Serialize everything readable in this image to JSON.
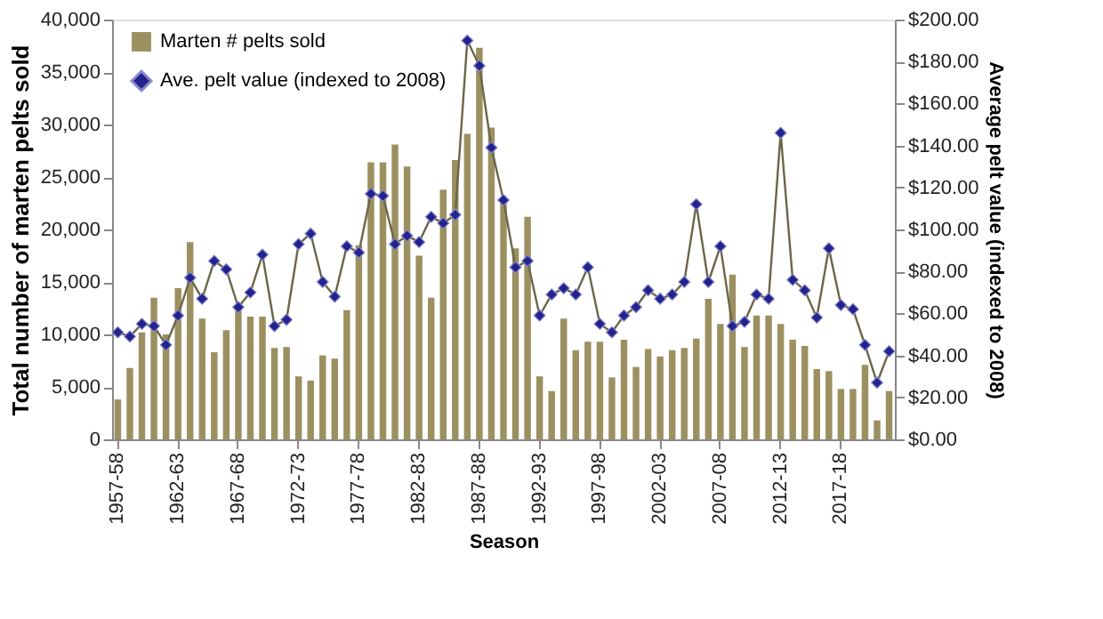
{
  "chart_data": {
    "type": "bar",
    "xlabel": "Season",
    "ylabel": "Total number of marten pelts sold",
    "y2label": "Average pelt value (indexed to 2008)",
    "categories": [
      "1957-58",
      null,
      null,
      null,
      null,
      "1962-63",
      null,
      null,
      null,
      null,
      "1967-68",
      null,
      null,
      null,
      null,
      "1972-73",
      null,
      null,
      null,
      null,
      "1977-78",
      null,
      null,
      null,
      null,
      "1982-83",
      null,
      null,
      null,
      null,
      "1987-88",
      null,
      null,
      null,
      null,
      "1992-93",
      null,
      null,
      null,
      null,
      "1997-98",
      null,
      null,
      null,
      null,
      "2002-03",
      null,
      null,
      null,
      null,
      "2007-08",
      null,
      null,
      null,
      null,
      "2012-13",
      null,
      null,
      null,
      null,
      "2017-18",
      null,
      null,
      null,
      null
    ],
    "series": [
      {
        "name": "Marten # pelts sold",
        "color": "#9c9060",
        "values": [
          3800,
          6800,
          10200,
          13500,
          10000,
          14400,
          18800,
          11500,
          8300,
          10400,
          12600,
          11700,
          11700,
          8700,
          8800,
          6000,
          5600,
          8000,
          7700,
          12300,
          18500,
          26400,
          26400,
          28100,
          26000,
          17500,
          13500,
          23800,
          26600,
          29100,
          37300,
          29700,
          22500,
          18200,
          21200,
          6000,
          4600,
          11500,
          8500,
          9300,
          9300,
          5900,
          9500,
          6900,
          8600,
          7900,
          8500,
          8700,
          9600,
          13400,
          11000,
          15700,
          8800,
          11800,
          11800,
          11000,
          9500,
          8900,
          6700,
          6500,
          4800,
          4800,
          7100,
          1800,
          4600
        ]
      },
      {
        "name": "Ave. pelt value (indexed to 2008)",
        "type": "line",
        "axis": "y2",
        "marker": "diamond",
        "color": "#23238e",
        "values": [
          51,
          49,
          55,
          54,
          45,
          59,
          77,
          67,
          85,
          81,
          63,
          70,
          88,
          54,
          57,
          93,
          98,
          75,
          68,
          92,
          89,
          117,
          116,
          93,
          97,
          94,
          106,
          103,
          107,
          190,
          178,
          139,
          114,
          82,
          85,
          59,
          69,
          72,
          69,
          82,
          55,
          51,
          59,
          63,
          71,
          67,
          69,
          75,
          112,
          75,
          92,
          54,
          56,
          69,
          67,
          146,
          76,
          71,
          58,
          91,
          64,
          62,
          45,
          27,
          42
        ]
      }
    ],
    "ylim": [
      0,
      40000
    ],
    "yticks": [
      0,
      {
        "value": 5000,
        "label": "5,000"
      },
      {
        "value": 10000,
        "label": "10,000"
      },
      {
        "value": 15000,
        "label": "15,000"
      },
      {
        "value": 20000,
        "label": "20,000"
      },
      {
        "value": 25000,
        "label": "25,000"
      },
      {
        "value": 30000,
        "label": "30,000"
      },
      {
        "value": 35000,
        "label": "35,000"
      },
      {
        "value": 40000,
        "label": "40,000"
      }
    ],
    "y2lim": [
      0,
      200
    ],
    "y2ticks": [
      {
        "value": 0,
        "label": "$0.00"
      },
      {
        "value": 20,
        "label": "$20.00"
      },
      {
        "value": 40,
        "label": "$40.00"
      },
      {
        "value": 60,
        "label": "$60.00"
      },
      {
        "value": 80,
        "label": "$80.00"
      },
      {
        "value": 100,
        "label": "$100.00"
      },
      {
        "value": 120,
        "label": "$120.00"
      },
      {
        "value": 140,
        "label": "$140.00"
      },
      {
        "value": 160,
        "label": "$160.00"
      },
      {
        "value": 180,
        "label": "$180.00"
      },
      {
        "value": 200,
        "label": "$200.00"
      }
    ],
    "legend": "top left",
    "grid": false
  }
}
